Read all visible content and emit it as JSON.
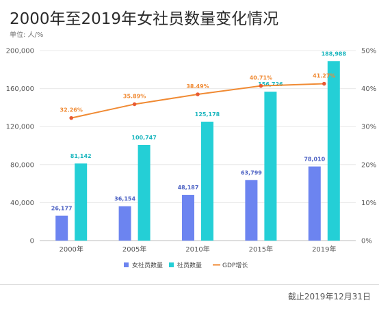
{
  "title": "2000年至2019年女社员数量变化情况",
  "unit_label": "单位: 人/%",
  "footer": "截止2019年12月31日",
  "colors": {
    "female": "#6c84f0",
    "members": "#24cfd6",
    "gdp": "#f08a33"
  },
  "chart_data": {
    "type": "bar",
    "categories": [
      "2000年",
      "2005年",
      "2010年",
      "2015年",
      "2019年"
    ],
    "series": [
      {
        "name": "女社员数量",
        "type": "bar",
        "axis": "left",
        "values": [
          26177,
          36154,
          48187,
          63799,
          78010
        ],
        "labels": [
          "26,177",
          "36,154",
          "48,187",
          "63,799",
          "78,010"
        ]
      },
      {
        "name": "社员数量",
        "type": "bar",
        "axis": "left",
        "values": [
          81142,
          100747,
          125178,
          156726,
          188988
        ],
        "labels": [
          "81,142",
          "100,747",
          "125,178",
          "156,726",
          "188,988"
        ]
      },
      {
        "name": "GDP增长",
        "type": "line",
        "axis": "right",
        "values": [
          32.26,
          35.89,
          38.49,
          40.71,
          41.27
        ],
        "labels": [
          "32.26%",
          "35.89%",
          "38.49%",
          "40.71%",
          "41.27%"
        ]
      }
    ],
    "ylim": [
      0,
      200000
    ],
    "y_ticks": [
      "0",
      "40,000",
      "80,000",
      "120,000",
      "160,000",
      "200,000"
    ],
    "y2lim": [
      0,
      50
    ],
    "y2_ticks": [
      "0%",
      "10%",
      "20%",
      "30%",
      "40%",
      "50%"
    ],
    "legend_position": "bottom"
  }
}
